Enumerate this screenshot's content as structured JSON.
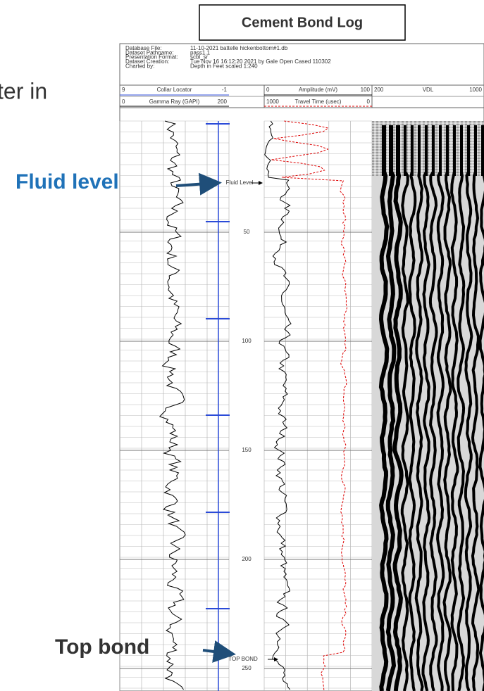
{
  "title": "Cement Bond Log",
  "slide_text": "ter in",
  "annotations": {
    "fluid_level": "Fluid level",
    "top_bond": "Top bond"
  },
  "log": {
    "header": [
      {
        "label": "Database File:",
        "value": "11-10-2021 battelle hickenbottom#1.db"
      },
      {
        "label": "Dataset Pathname:",
        "value": "pass1.1"
      },
      {
        "label": "Presentation Format:",
        "value": "scbl_sr"
      },
      {
        "label": "Dataset Creation:",
        "value": "Tue Nov 16 16:12:20 2021 by Gale Open Cased 110302"
      },
      {
        "label": "Charted by:",
        "value": "Depth in Feet scaled 1:240"
      }
    ],
    "tracks": {
      "collar_locator": {
        "left": 9,
        "name": "Collar Locator",
        "right": -1
      },
      "gamma_ray": {
        "left": 0,
        "name": "Gamma Ray (GAPI)",
        "right": 200
      },
      "amplitude": {
        "left": 0,
        "name": "Amplitude (mV)",
        "right": 100
      },
      "travel_time": {
        "left": 1000,
        "name": "Travel Time (usec)",
        "right": 0
      },
      "vdl": {
        "left": 200,
        "name": "VDL",
        "right": 1000
      }
    },
    "depth_labels": [
      50,
      100,
      150,
      200,
      250
    ],
    "markers": {
      "fluid_level": "Fluid Level",
      "top_bond": "TOP BOND"
    }
  }
}
